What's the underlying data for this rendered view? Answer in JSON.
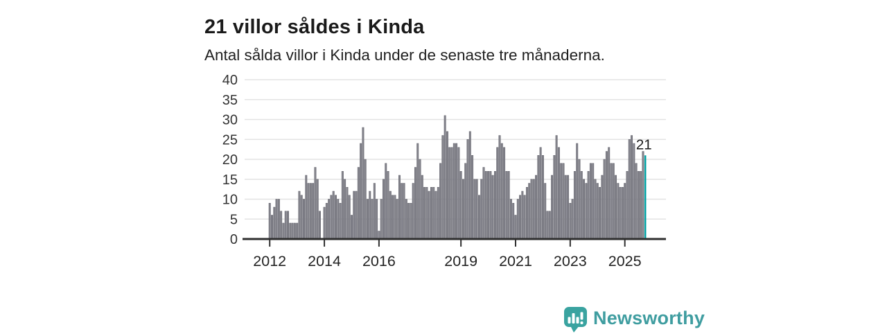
{
  "title": "21 villor såldes i Kinda",
  "subtitle": "Antal sålda villor i Kinda under de senaste tre månaderna.",
  "branding": {
    "logo_text": "Newsworthy",
    "logo_icon": "newsworthy-speech-bubble-bar-chart-icon",
    "icon_color": "#3aa3a0",
    "text_color": "#3f9da0"
  },
  "chart_data": {
    "type": "bar",
    "title": "21 villor såldes i Kinda",
    "subtitle": "Antal sålda villor i Kinda under de senaste tre månaderna.",
    "unit": "sålda villor per månad (rullande tre månader)",
    "x_start": "2012-01",
    "x_end": "2025-10",
    "x_tick_labels": [
      "2012",
      "2014",
      "2016",
      "2019",
      "2021",
      "2023",
      "2025"
    ],
    "y_ticks": [
      0,
      5,
      10,
      15,
      20,
      25,
      30,
      35,
      40
    ],
    "ylim": [
      0,
      40
    ],
    "grid": true,
    "legend": false,
    "highlight_label": "21",
    "highlight_value": 21,
    "bar_color": "#84848c",
    "bar_stroke_color": "#60606a",
    "highlight_color": "#00a2a4",
    "axis_color": "#2e2e2e",
    "grid_color": "#e3e3e3",
    "axis_label_color": "#333333",
    "values": [
      9,
      6,
      8,
      10,
      10,
      7,
      4,
      7,
      7,
      4,
      4,
      4,
      4,
      12,
      11,
      10,
      16,
      14,
      14,
      14,
      18,
      15,
      7,
      0,
      8,
      9,
      10,
      11,
      12,
      11,
      10,
      9,
      17,
      15,
      13,
      11,
      6,
      12,
      12,
      18,
      24,
      28,
      20,
      10,
      12,
      10,
      14,
      10,
      2,
      10,
      15,
      19,
      17,
      12,
      11,
      11,
      10,
      16,
      14,
      14,
      10,
      9,
      9,
      14,
      18,
      24,
      20,
      16,
      13,
      13,
      12,
      13,
      13,
      12,
      13,
      19,
      26,
      31,
      27,
      23,
      23,
      24,
      24,
      23,
      17,
      15,
      19,
      25,
      27,
      21,
      15,
      15,
      11,
      15,
      18,
      17,
      17,
      17,
      16,
      17,
      23,
      26,
      24,
      23,
      17,
      17,
      10,
      9,
      6,
      10,
      11,
      12,
      11,
      13,
      14,
      15,
      15,
      16,
      21,
      23,
      21,
      14,
      7,
      7,
      16,
      21,
      26,
      23,
      19,
      19,
      16,
      16,
      9,
      10,
      17,
      24,
      20,
      17,
      15,
      14,
      17,
      19,
      19,
      15,
      14,
      13,
      16,
      20,
      22,
      23,
      19,
      19,
      16,
      14,
      13,
      13,
      14,
      17,
      25,
      26,
      24,
      19,
      17,
      17,
      22,
      21
    ]
  }
}
